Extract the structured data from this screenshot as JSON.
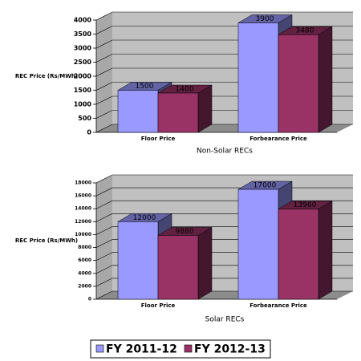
{
  "chart_data": [
    {
      "type": "bar3d",
      "y_label": "REC Price (Rs/MWh)",
      "x_label": "Non-Solar RECs",
      "categories": [
        "Floor Price",
        "Forbearance Price"
      ],
      "series": [
        {
          "name": "FY 2011-12",
          "color": "#9999ff",
          "values": [
            1500,
            3900
          ]
        },
        {
          "name": "FY 2012-13",
          "color": "#993366",
          "values": [
            1400,
            3480
          ]
        }
      ],
      "ylim": [
        0,
        4000
      ],
      "yticks": [
        0,
        500,
        1000,
        1500,
        2000,
        2500,
        3000,
        3500,
        4000
      ],
      "grid": true
    },
    {
      "type": "bar3d",
      "y_label": "REC Price (Rs/MWh)",
      "x_label": "Solar RECs",
      "categories": [
        "Floor Price",
        "Forbearance Price"
      ],
      "series": [
        {
          "color": "#9999ff",
          "values": [
            12000,
            17000
          ]
        },
        {
          "color": "#993366",
          "values": [
            9880,
            13960
          ]
        }
      ],
      "ylim": [
        0,
        18000
      ],
      "yticks": [
        0,
        2000,
        4000,
        6000,
        8000,
        10000,
        12000,
        14000,
        16000,
        18000
      ],
      "grid": true
    }
  ]
}
